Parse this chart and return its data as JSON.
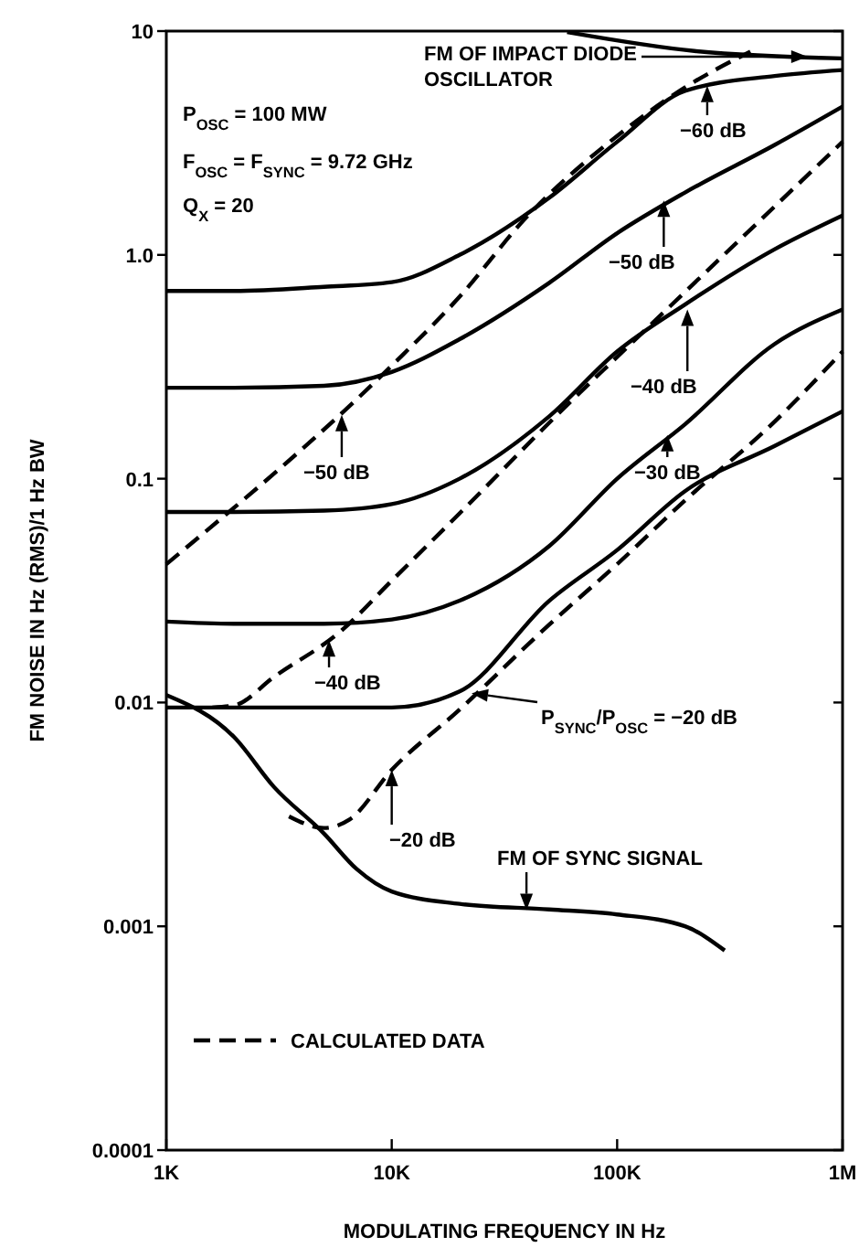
{
  "chart_data": {
    "type": "line",
    "xlabel": "MODULATING FREQUENCY IN Hz",
    "ylabel": "FM NOISE IN Hz (RMS)/1 Hz BW",
    "log": "xy",
    "grid": false,
    "legend": "bottom left",
    "marker": "none",
    "xlim": [
      1000,
      1000000
    ],
    "ylim": [
      0.0001,
      10
    ],
    "xticks": [
      {
        "value": 1000,
        "label": "1K"
      },
      {
        "value": 10000,
        "label": "10K"
      },
      {
        "value": 100000,
        "label": "100K"
      },
      {
        "value": 1000000,
        "label": "1M"
      }
    ],
    "yticks": [
      0.0001,
      0.001,
      0.01,
      0.1,
      {
        "value": 1,
        "label": "1.0"
      },
      10
    ],
    "series": [
      {
        "color": "#000000",
        "line_style": "solid",
        "x": [
          60000,
          220000,
          1000000
        ],
        "values": [
          9.9,
          8.15,
          7.55
        ]
      },
      {
        "color": "#000000",
        "line_style": "solid",
        "x": [
          1000,
          2000,
          5000,
          10000,
          20000,
          50000,
          100000,
          200000,
          500000,
          1000000
        ],
        "values": [
          0.69,
          0.69,
          0.72,
          0.755,
          1.0,
          1.8,
          3.2,
          5.4,
          6.3,
          6.7
        ]
      },
      {
        "color": "#000000",
        "line_style": "solid",
        "x": [
          1000,
          2000,
          5000,
          10000,
          20000,
          50000,
          100000,
          200000,
          500000,
          1000000
        ],
        "values": [
          0.255,
          0.255,
          0.26,
          0.3,
          0.42,
          0.75,
          1.25,
          1.9,
          3.1,
          4.6
        ]
      },
      {
        "color": "#000000",
        "line_style": "solid",
        "x": [
          1000,
          2000,
          5000,
          10000,
          20000,
          50000,
          100000,
          200000,
          500000,
          1000000
        ],
        "values": [
          0.071,
          0.071,
          0.072,
          0.077,
          0.1,
          0.19,
          0.37,
          0.6,
          1.06,
          1.5
        ]
      },
      {
        "color": "#000000",
        "line_style": "solid",
        "x": [
          1000,
          2000,
          5000,
          10000,
          20000,
          50000,
          100000,
          200000,
          500000,
          1000000
        ],
        "values": [
          0.023,
          0.0225,
          0.0225,
          0.0235,
          0.0285,
          0.05,
          0.1,
          0.175,
          0.4,
          0.57
        ]
      },
      {
        "color": "#000000",
        "line_style": "solid",
        "x": [
          1000,
          2000,
          5000,
          10000,
          20000,
          50000,
          100000,
          200000,
          500000,
          1000000
        ],
        "values": [
          0.0095,
          0.0095,
          0.0095,
          0.0095,
          0.0112,
          0.0285,
          0.048,
          0.088,
          0.14,
          0.2
        ]
      },
      {
        "color": "#000000",
        "line_style": "solid",
        "x": [
          1000,
          2000,
          3000,
          5000,
          7000,
          10000,
          20000,
          50000,
          100000,
          200000,
          300000
        ],
        "values": [
          0.0108,
          0.007,
          0.0042,
          0.0026,
          0.0018,
          0.00143,
          0.00126,
          0.00119,
          0.00113,
          0.001,
          0.00078
        ]
      },
      {
        "name": "CALCULATED DATA",
        "color": "#000000",
        "line_style": "dashed",
        "x": [
          1000,
          10000,
          20000,
          39000,
          100000,
          200000,
          390000
        ],
        "values": [
          0.0415,
          0.32,
          0.65,
          1.45,
          3.4,
          5.6,
          8.1
        ]
      },
      {
        "color": "#000000",
        "line_style": "dashed",
        "x": [
          1600,
          2000,
          3000,
          6000,
          10000,
          20000,
          63000,
          100000,
          1000000
        ],
        "values": [
          0.0095,
          0.0097,
          0.013,
          0.021,
          0.035,
          0.07,
          0.224,
          0.35,
          3.2
        ]
      },
      {
        "color": "#000000",
        "line_style": "dashed",
        "x": [
          3500,
          5000,
          6500,
          10000,
          20000,
          50000,
          100000,
          200000,
          500000,
          1000000
        ],
        "values": [
          0.0031,
          0.00275,
          0.003,
          0.005,
          0.0093,
          0.0223,
          0.0415,
          0.08,
          0.18,
          0.37
        ]
      }
    ],
    "annotations": [
      {
        "text": "FM OF IMPACT DIODE OSCILLATOR",
        "x": 700000,
        "y": 7.69
      },
      "P$_{OSC}$ = 100 MW",
      "F$_{OSC}$ = F$_{SYNC}$ = 9.72 GHz",
      "Q$_{X}$ = 20",
      {
        "text": "−60 dB",
        "x": 251000,
        "y": 5.7
      },
      {
        "text": "−50 dB",
        "x": 161000,
        "y": 1.75
      },
      {
        "text": "−40 dB",
        "x": 205000,
        "y": 0.57
      },
      {
        "text": "−30 dB",
        "x": 167000,
        "y": 0.157
      },
      {
        "text": "−50 dB",
        "x": 6000,
        "y": 0.193
      },
      {
        "text": "−40 dB",
        "x": 5270,
        "y": 0.019
      },
      {
        "text": "P$_{SYNC}$/P$_{OSC}$ = −20 dB",
        "x": 22600,
        "y": 0.011
      },
      {
        "text": "−20 dB",
        "x": 10000,
        "y": 0.005
      },
      {
        "text": "FM OF SYNC SIGNAL",
        "x": 39600,
        "y": 0.00118
      }
    ]
  }
}
